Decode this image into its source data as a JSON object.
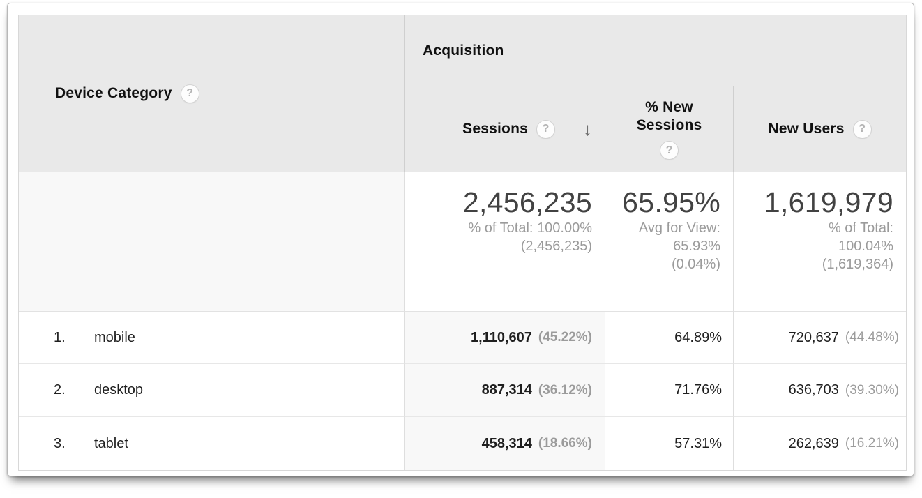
{
  "icons": {
    "help": "?",
    "sort_desc": "↓"
  },
  "colors": {
    "header_bg": "#e9e9e9",
    "sorted_col_bg": "#f8f8f8",
    "muted_text": "#9b9b9b",
    "summary_text": "#424242"
  },
  "table": {
    "dimension_header": "Device Category",
    "group_header": "Acquisition",
    "columns": {
      "sessions": "Sessions",
      "new_sessions_line1": "% New",
      "new_sessions_line2": "Sessions",
      "new_users": "New Users"
    },
    "summary": {
      "sessions": {
        "value": "2,456,235",
        "line1": "% of Total: 100.00%",
        "line2": "(2,456,235)"
      },
      "new_sessions": {
        "value": "65.95%",
        "line1": "Avg for View:",
        "line2": "65.93%",
        "line3": "(0.04%)"
      },
      "new_users": {
        "value": "1,619,979",
        "line1": "% of Total:",
        "line2": "100.04%",
        "line3": "(1,619,364)"
      }
    },
    "rows": [
      {
        "rank": "1.",
        "label": "mobile",
        "sessions": "1,110,607",
        "sessions_pct": "(45.22%)",
        "new_sessions": "64.89%",
        "new_users": "720,637",
        "new_users_pct": "(44.48%)"
      },
      {
        "rank": "2.",
        "label": "desktop",
        "sessions": "887,314",
        "sessions_pct": "(36.12%)",
        "new_sessions": "71.76%",
        "new_users": "636,703",
        "new_users_pct": "(39.30%)"
      },
      {
        "rank": "3.",
        "label": "tablet",
        "sessions": "458,314",
        "sessions_pct": "(18.66%)",
        "new_sessions": "57.31%",
        "new_users": "262,639",
        "new_users_pct": "(16.21%)"
      }
    ]
  }
}
